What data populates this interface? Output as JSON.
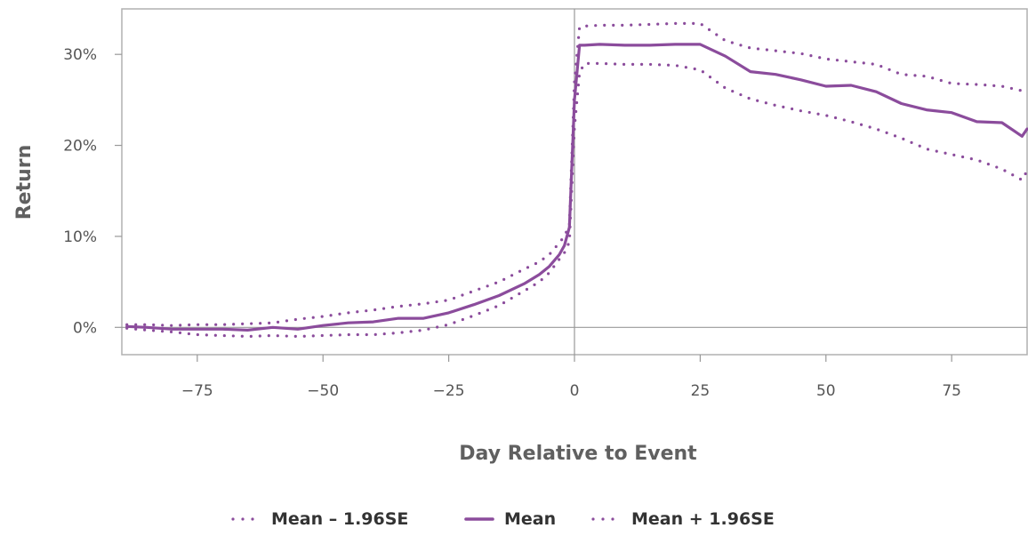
{
  "chart_data": {
    "type": "line",
    "title": "",
    "xlabel": "Day Relative to Event",
    "ylabel": "Return",
    "xlim": [
      -90,
      90
    ],
    "ylim": [
      -3,
      35
    ],
    "x_ticks": [
      -75,
      -50,
      -25,
      0,
      25,
      50,
      75
    ],
    "x_tick_labels": [
      "−75",
      "−50",
      "−25",
      "0",
      "25",
      "50",
      "75"
    ],
    "y_ticks": [
      0,
      10,
      20,
      30
    ],
    "y_tick_labels": [
      "0%",
      "10%",
      "20%",
      "30%"
    ],
    "grid": false,
    "reference_lines": {
      "x": 0,
      "y": 0
    },
    "legend_position": "bottom-center",
    "colors": {
      "series": "#8b4c9c",
      "axis": "#999999",
      "frame": "#b0b0b0"
    },
    "x": [
      -89,
      -85,
      -80,
      -75,
      -70,
      -65,
      -60,
      -55,
      -50,
      -45,
      -40,
      -35,
      -30,
      -25,
      -20,
      -15,
      -10,
      -7,
      -5,
      -3,
      -2,
      -1,
      0,
      1,
      2,
      5,
      10,
      15,
      20,
      25,
      30,
      35,
      40,
      45,
      50,
      55,
      60,
      65,
      70,
      75,
      80,
      85,
      89,
      90
    ],
    "series": [
      {
        "name": "Mean – 1.96SE",
        "style": "dotted",
        "values": [
          -0.1,
          -0.3,
          -0.5,
          -0.8,
          -0.9,
          -1.0,
          -0.9,
          -1.0,
          -0.9,
          -0.8,
          -0.8,
          -0.6,
          -0.3,
          0.3,
          1.3,
          2.4,
          4.0,
          5.0,
          6.0,
          7.5,
          8.2,
          9.4,
          22.0,
          28.0,
          29.0,
          29.0,
          28.9,
          28.9,
          28.8,
          28.3,
          26.3,
          25.1,
          24.4,
          23.8,
          23.3,
          22.6,
          21.8,
          20.8,
          19.6,
          19.0,
          18.4,
          17.4,
          16.2,
          17.2
        ]
      },
      {
        "name": "Mean",
        "style": "solid",
        "values": [
          0.1,
          0.0,
          -0.2,
          -0.2,
          -0.2,
          -0.3,
          0.0,
          -0.2,
          0.2,
          0.5,
          0.6,
          1.0,
          1.0,
          1.6,
          2.5,
          3.5,
          4.8,
          5.8,
          6.7,
          8.0,
          9.0,
          11.0,
          25.0,
          31.0,
          31.0,
          31.1,
          31.0,
          31.0,
          31.1,
          31.1,
          29.8,
          28.1,
          27.8,
          27.2,
          26.5,
          26.6,
          25.9,
          24.6,
          23.9,
          23.6,
          22.6,
          22.5,
          21.0,
          21.8
        ]
      },
      {
        "name": "Mean + 1.96SE",
        "style": "dotted",
        "values": [
          0.3,
          0.3,
          0.2,
          0.3,
          0.3,
          0.4,
          0.5,
          0.9,
          1.2,
          1.6,
          1.9,
          2.3,
          2.6,
          3.0,
          4.0,
          5.0,
          6.4,
          7.2,
          8.0,
          9.3,
          10.0,
          11.3,
          27.0,
          33.0,
          33.1,
          33.2,
          33.2,
          33.3,
          33.4,
          33.4,
          31.5,
          30.7,
          30.4,
          30.1,
          29.5,
          29.2,
          28.9,
          27.8,
          27.6,
          26.8,
          26.7,
          26.5,
          26.0,
          26.4
        ]
      }
    ]
  }
}
